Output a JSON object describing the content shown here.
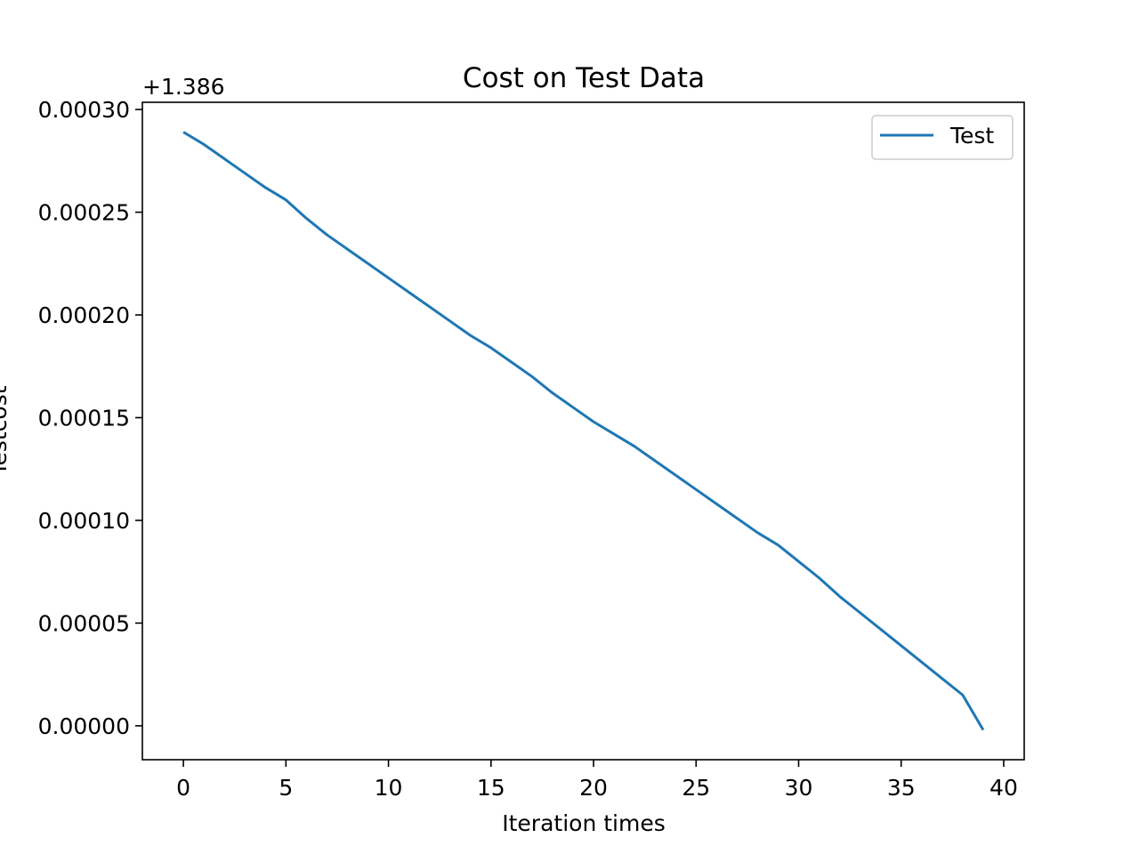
{
  "chart_data": {
    "type": "line",
    "title": "Cost on Test Data",
    "xlabel": "Iteration times",
    "ylabel": "Testcost",
    "y_offset_label": "+1.386",
    "y_offset": 1.386,
    "xlim": [
      -2,
      41
    ],
    "ylim": [
      -1.65e-05,
      0.0003035
    ],
    "x_ticks": [
      0,
      5,
      10,
      15,
      20,
      25,
      30,
      35,
      40
    ],
    "x_tick_labels": [
      "0",
      "5",
      "10",
      "15",
      "20",
      "25",
      "30",
      "35",
      "40"
    ],
    "y_ticks": [
      0.0,
      5e-05,
      0.0001,
      0.00015,
      0.0002,
      0.00025,
      0.0003
    ],
    "y_tick_labels": [
      "0.00000",
      "0.00005",
      "0.00010",
      "0.00015",
      "0.00020",
      "0.00025",
      "0.00030"
    ],
    "grid": false,
    "legend_position": "top-right",
    "series": [
      {
        "name": "Test",
        "color": "#1f77b4",
        "x": [
          0,
          1,
          2,
          3,
          4,
          5,
          6,
          7,
          8,
          9,
          10,
          11,
          12,
          13,
          14,
          15,
          16,
          17,
          18,
          19,
          20,
          21,
          22,
          23,
          24,
          25,
          26,
          27,
          28,
          29,
          30,
          31,
          32,
          33,
          34,
          35,
          36,
          37,
          38,
          39
        ],
        "values": [
          0.000289,
          0.000283,
          0.000276,
          0.000269,
          0.000262,
          0.000256,
          0.000247,
          0.000239,
          0.000232,
          0.000225,
          0.000218,
          0.000211,
          0.000204,
          0.000197,
          0.00019,
          0.000184,
          0.000177,
          0.00017,
          0.000162,
          0.000155,
          0.000148,
          0.000142,
          0.000136,
          0.000129,
          0.000122,
          0.000115,
          0.000108,
          0.000101,
          9.4e-05,
          8.8e-05,
          8e-05,
          7.2e-05,
          6.3e-05,
          5.5e-05,
          4.7e-05,
          3.9e-05,
          3.1e-05,
          2.3e-05,
          1.5e-05,
          -2e-06
        ]
      }
    ]
  }
}
